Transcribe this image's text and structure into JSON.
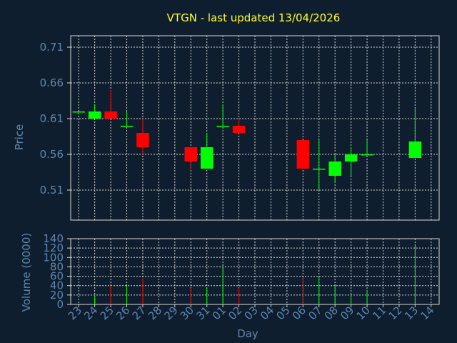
{
  "chart_data": {
    "type": "candlestick",
    "title": "VTGN - last updated 13/04/2026",
    "xlabel": "Day",
    "ylabel": "Price",
    "volume_ylabel": "Volume (0000)",
    "x_ticks": [
      "23",
      "24",
      "25",
      "26",
      "27",
      "28",
      "29",
      "30",
      "31",
      "01",
      "02",
      "03",
      "04",
      "05",
      "06",
      "07",
      "08",
      "09",
      "10",
      "11",
      "12",
      "13",
      "14"
    ],
    "price_ticks": [
      "0.71",
      "0.66",
      "0.61",
      "0.56",
      "0.51"
    ],
    "price_tick_values": [
      0.71,
      0.66,
      0.61,
      0.56,
      0.51
    ],
    "price_range": [
      0.468,
      0.726
    ],
    "volume_ticks": [
      "0",
      "20",
      "40",
      "60",
      "80",
      "100",
      "120",
      "140"
    ],
    "volume_tick_values": [
      0,
      20,
      40,
      60,
      80,
      100,
      120,
      140
    ],
    "volume_range": [
      0,
      140
    ],
    "candles": [
      {
        "day": "23",
        "open": 0.62,
        "close": 0.62,
        "high": 0.62,
        "low": 0.62,
        "volume": 0
      },
      {
        "day": "24",
        "open": 0.61,
        "close": 0.62,
        "high": 0.63,
        "low": 0.61,
        "volume": 20
      },
      {
        "day": "25",
        "open": 0.62,
        "close": 0.61,
        "high": 0.65,
        "low": 0.61,
        "volume": 40
      },
      {
        "day": "26",
        "open": 0.6,
        "close": 0.6,
        "high": 0.62,
        "low": 0.6,
        "volume": 40
      },
      {
        "day": "27",
        "open": 0.59,
        "close": 0.57,
        "high": 0.61,
        "low": 0.56,
        "volume": 55
      },
      {
        "day": "30",
        "open": 0.57,
        "close": 0.55,
        "high": 0.57,
        "low": 0.54,
        "volume": 35
      },
      {
        "day": "31",
        "open": 0.54,
        "close": 0.57,
        "high": 0.59,
        "low": 0.54,
        "volume": 35
      },
      {
        "day": "01",
        "open": 0.6,
        "close": 0.6,
        "high": 0.63,
        "low": 0.6,
        "volume": 80
      },
      {
        "day": "02",
        "open": 0.6,
        "close": 0.59,
        "high": 0.61,
        "low": 0.59,
        "volume": 35
      },
      {
        "day": "06",
        "open": 0.58,
        "close": 0.54,
        "high": 0.58,
        "low": 0.54,
        "volume": 58
      },
      {
        "day": "07",
        "open": 0.54,
        "close": 0.54,
        "high": 0.58,
        "low": 0.51,
        "volume": 60
      },
      {
        "day": "08",
        "open": 0.53,
        "close": 0.55,
        "high": 0.56,
        "low": 0.52,
        "volume": 40
      },
      {
        "day": "09",
        "open": 0.55,
        "close": 0.56,
        "high": 0.57,
        "low": 0.53,
        "volume": 20
      },
      {
        "day": "10",
        "open": 0.56,
        "close": 0.56,
        "high": 0.58,
        "low": 0.56,
        "volume": 30
      },
      {
        "day": "13",
        "open": 0.555,
        "close": 0.578,
        "high": 0.625,
        "low": 0.555,
        "volume": 125
      }
    ],
    "up_color": "#00ff00",
    "down_color": "#ff0000",
    "background": "#0f1e2e",
    "grid": true
  }
}
